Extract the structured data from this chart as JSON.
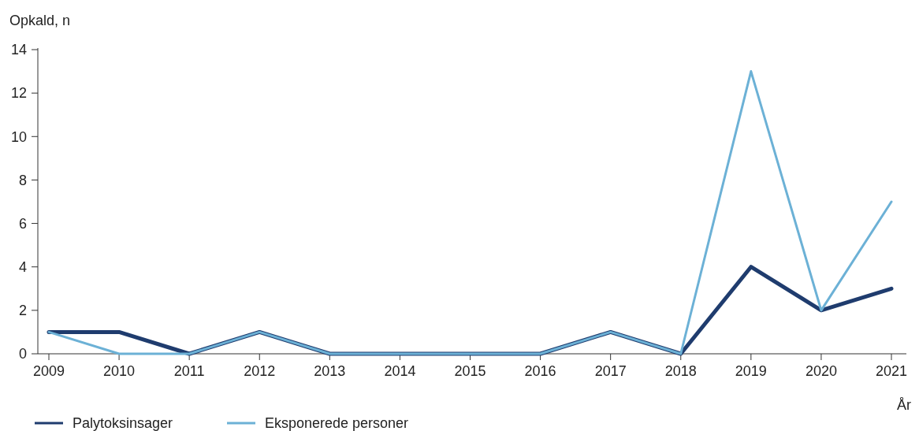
{
  "chart_data": {
    "type": "line",
    "ylabel": "Opkald, n",
    "xlabel": "År",
    "categories": [
      "2009",
      "2010",
      "2011",
      "2012",
      "2013",
      "2014",
      "2015",
      "2016",
      "2017",
      "2018",
      "2019",
      "2020",
      "2021"
    ],
    "series": [
      {
        "name": "Palytoksinsager",
        "color": "#1f3c6e",
        "values": [
          1,
          1,
          0,
          1,
          0,
          0,
          0,
          0,
          1,
          0,
          4,
          2,
          3
        ]
      },
      {
        "name": "Eksponerede personer",
        "color": "#6cb1d6",
        "values": [
          1,
          0,
          0,
          1,
          0,
          0,
          0,
          0,
          1,
          0,
          13,
          2,
          7
        ]
      }
    ],
    "ylim": [
      0,
      14
    ],
    "yticks": [
      0,
      2,
      4,
      6,
      8,
      10,
      12,
      14
    ],
    "grid": false,
    "legend": "bottom left",
    "marker": "none",
    "line_style": "solid"
  }
}
